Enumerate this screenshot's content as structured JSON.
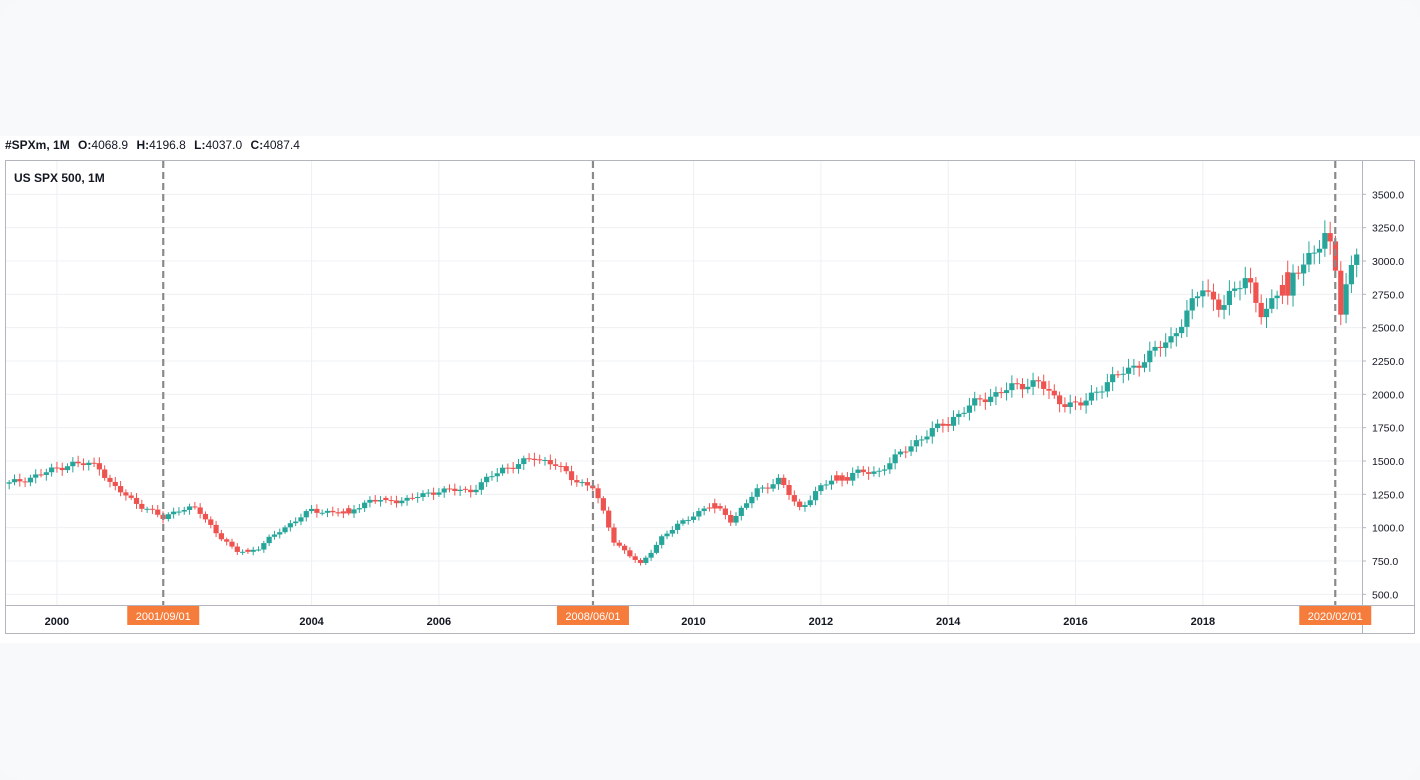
{
  "header": {
    "symbol": "#SPXm, 1M",
    "o_label": "O:",
    "o_value": "4068.9",
    "h_label": "H:",
    "h_value": "4196.8",
    "l_label": "L:",
    "l_value": "4037.0",
    "c_label": "C:",
    "c_value": "4087.4"
  },
  "colors": {
    "up": "#26a69a",
    "down": "#ef5350",
    "marker": "#f57c3a",
    "grid": "#eef0f3",
    "vline": "#8a8a8a"
  },
  "chart_data": {
    "type": "candlestick",
    "title": "US SPX 500, 1M",
    "xlim": [
      1999.2,
      2020.5
    ],
    "ylim": [
      420,
      3750
    ],
    "y_ticks": [
      "500.0",
      "750.0",
      "1000.0",
      "1250.0",
      "1500.0",
      "1750.0",
      "2000.0",
      "2250.0",
      "2500.0",
      "2750.0",
      "3000.0",
      "3250.0",
      "3500.0"
    ],
    "x_ticks": [
      {
        "x": 2000,
        "label": "2000"
      },
      {
        "x": 2004,
        "label": "2004"
      },
      {
        "x": 2006,
        "label": "2006"
      },
      {
        "x": 2010,
        "label": "2010"
      },
      {
        "x": 2012,
        "label": "2012"
      },
      {
        "x": 2014,
        "label": "2014"
      },
      {
        "x": 2016,
        "label": "2016"
      },
      {
        "x": 2018,
        "label": "2018"
      }
    ],
    "markers": [
      {
        "x": 2001.67,
        "label": "2001/09/01"
      },
      {
        "x": 2008.42,
        "label": "2008/06/01"
      },
      {
        "x": 2020.08,
        "label": "2020/02/01"
      }
    ],
    "start": 1999.25,
    "close_anchors": [
      [
        1999.25,
        1330
      ],
      [
        1999.75,
        1400
      ],
      [
        2000.2,
        1480
      ],
      [
        2000.65,
        1470
      ],
      [
        2000.85,
        1320
      ],
      [
        2001.2,
        1200
      ],
      [
        2001.67,
        1070
      ],
      [
        2001.9,
        1140
      ],
      [
        2002.2,
        1140
      ],
      [
        2002.55,
        940
      ],
      [
        2002.8,
        820
      ],
      [
        2003.15,
        840
      ],
      [
        2003.5,
        980
      ],
      [
        2004.0,
        1130
      ],
      [
        2004.5,
        1110
      ],
      [
        2004.9,
        1200
      ],
      [
        2005.5,
        1210
      ],
      [
        2006.0,
        1280
      ],
      [
        2006.5,
        1280
      ],
      [
        2007.0,
        1440
      ],
      [
        2007.5,
        1520
      ],
      [
        2007.8,
        1490
      ],
      [
        2008.1,
        1360
      ],
      [
        2008.42,
        1310
      ],
      [
        2008.75,
        900
      ],
      [
        2009.17,
        720
      ],
      [
        2009.5,
        930
      ],
      [
        2010.0,
        1100
      ],
      [
        2010.35,
        1180
      ],
      [
        2010.6,
        1050
      ],
      [
        2011.0,
        1280
      ],
      [
        2011.35,
        1360
      ],
      [
        2011.65,
        1140
      ],
      [
        2012.0,
        1300
      ],
      [
        2012.3,
        1400
      ],
      [
        2012.9,
        1420
      ],
      [
        2013.5,
        1650
      ],
      [
        2014.0,
        1800
      ],
      [
        2014.5,
        1960
      ],
      [
        2015.0,
        2050
      ],
      [
        2015.4,
        2100
      ],
      [
        2015.7,
        1950
      ],
      [
        2016.1,
        1920
      ],
      [
        2016.5,
        2100
      ],
      [
        2016.9,
        2200
      ],
      [
        2017.5,
        2420
      ],
      [
        2018.0,
        2800
      ],
      [
        2018.3,
        2650
      ],
      [
        2018.7,
        2900
      ],
      [
        2018.95,
        2550
      ],
      [
        2019.3,
        2900
      ],
      [
        2019.6,
        2950
      ],
      [
        2019.95,
        3240
      ],
      [
        2020.08,
        2960
      ],
      [
        2020.17,
        2580
      ],
      [
        2020.3,
        2900
      ],
      [
        2020.5,
        3250
      ]
    ],
    "down_bars": [
      2000.0,
      2000.8,
      2000.9,
      2001.1,
      2001.3,
      2001.5,
      2001.6,
      2002.2,
      2002.3,
      2002.5,
      2002.6,
      2002.7,
      2003.0,
      2004.5,
      2004.6,
      2005.2,
      2006.4,
      2007.6,
      2007.9,
      2008.0,
      2008.1,
      2008.4,
      2008.5,
      2008.7,
      2008.8,
      2008.9,
      2009.1,
      2010.3,
      2010.4,
      2011.4,
      2011.5,
      2011.6,
      2012.3,
      2012.4,
      2014.0,
      2015.5,
      2015.6,
      2016.0,
      2016.1,
      2018.1,
      2018.2,
      2018.8,
      2018.9,
      2019.3,
      2020.1,
      2020.2
    ]
  }
}
